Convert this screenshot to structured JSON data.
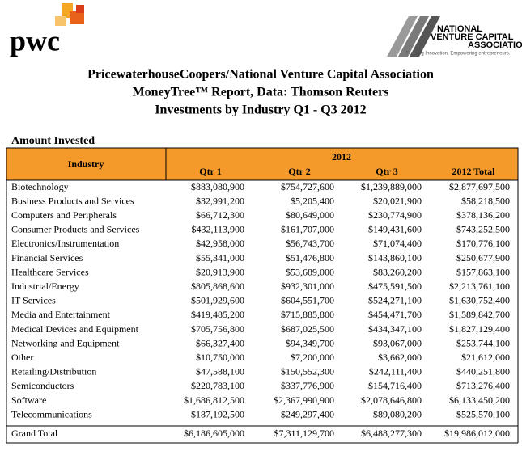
{
  "header": {
    "logo_left": "pwc",
    "logo_right": [
      "NATIONAL",
      "VENTURE CAPITAL",
      "ASSOCIATION"
    ],
    "tagline": "Funding Innovation. Empowering entrepreneurs.",
    "title_lines": [
      "PricewaterhouseCoopers/National Venture Capital Association",
      "MoneyTree™ Report, Data: Thomson Reuters",
      "Investments by Industry Q1 - Q3 2012"
    ]
  },
  "section": "Amount Invested",
  "table": {
    "industry_header": "Industry",
    "year_header": "2012",
    "columns": [
      "Qtr 1",
      "Qtr 2",
      "Qtr 3",
      "2012 Total"
    ],
    "rows": [
      [
        "Biotechnology",
        "$883,080,900",
        "$754,727,600",
        "$1,239,889,000",
        "$2,877,697,500"
      ],
      [
        "Business Products and Services",
        "$32,991,200",
        "$5,205,400",
        "$20,021,900",
        "$58,218,500"
      ],
      [
        "Computers and Peripherals",
        "$66,712,300",
        "$80,649,000",
        "$230,774,900",
        "$378,136,200"
      ],
      [
        "Consumer Products and Services",
        "$432,113,900",
        "$161,707,000",
        "$149,431,600",
        "$743,252,500"
      ],
      [
        "Electronics/Instrumentation",
        "$42,958,000",
        "$56,743,700",
        "$71,074,400",
        "$170,776,100"
      ],
      [
        "Financial Services",
        "$55,341,000",
        "$51,476,800",
        "$143,860,100",
        "$250,677,900"
      ],
      [
        "Healthcare Services",
        "$20,913,900",
        "$53,689,000",
        "$83,260,200",
        "$157,863,100"
      ],
      [
        "Industrial/Energy",
        "$805,868,600",
        "$932,301,000",
        "$475,591,500",
        "$2,213,761,100"
      ],
      [
        "IT Services",
        "$501,929,600",
        "$604,551,700",
        "$524,271,100",
        "$1,630,752,400"
      ],
      [
        "Media and Entertainment",
        "$419,485,200",
        "$715,885,800",
        "$454,471,700",
        "$1,589,842,700"
      ],
      [
        "Medical Devices and Equipment",
        "$705,756,800",
        "$687,025,500",
        "$434,347,100",
        "$1,827,129,400"
      ],
      [
        "Networking and Equipment",
        "$66,327,400",
        "$94,349,700",
        "$93,067,000",
        "$253,744,100"
      ],
      [
        "Other",
        "$10,750,000",
        "$7,200,000",
        "$3,662,000",
        "$21,612,000"
      ],
      [
        "Retailing/Distribution",
        "$47,588,100",
        "$150,552,300",
        "$242,111,400",
        "$440,251,800"
      ],
      [
        "Semiconductors",
        "$220,783,100",
        "$337,776,900",
        "$154,716,400",
        "$713,276,400"
      ],
      [
        "Software",
        "$1,686,812,500",
        "$2,367,990,900",
        "$2,078,646,800",
        "$6,133,450,200"
      ],
      [
        "Telecommunications",
        "$187,192,500",
        "$249,297,400",
        "$89,080,200",
        "$525,570,100"
      ]
    ],
    "total_row": [
      "Grand Total",
      "$6,186,605,000",
      "$7,311,129,700",
      "$6,488,277,300",
      "$19,986,012,000"
    ]
  }
}
